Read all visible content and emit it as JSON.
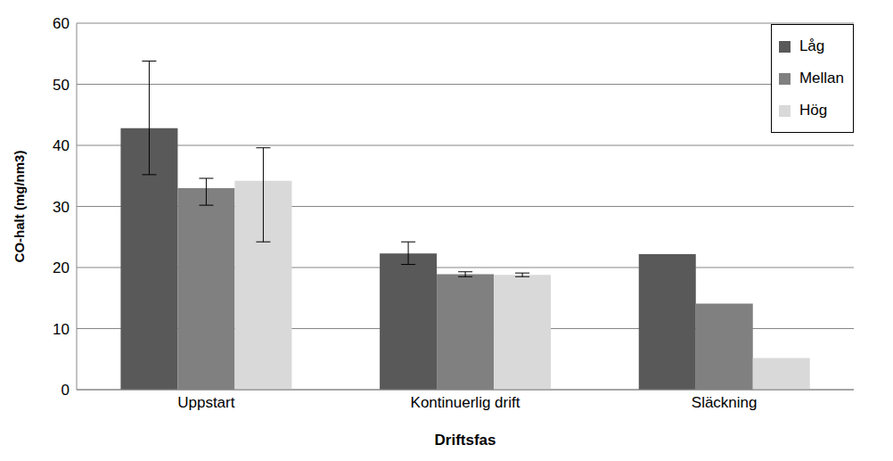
{
  "chart_data": {
    "type": "bar",
    "categories": [
      "Uppstart",
      "Kontinuerlig drift",
      "Släckning"
    ],
    "x_label": "Driftsfas",
    "y_label": "CO-halt (mg/nm3)",
    "ylim": [
      0,
      60
    ],
    "yticks": [
      0,
      10,
      20,
      30,
      40,
      50,
      60
    ],
    "grid": true,
    "legend": "upper right",
    "series": [
      {
        "name": "Låg",
        "color": "#595959",
        "values": [
          42.8,
          22.3,
          22.2
        ],
        "error": [
          [
            7.6,
            11.0
          ],
          [
            1.8,
            1.9
          ],
          null
        ]
      },
      {
        "name": "Mellan",
        "color": "#808080",
        "values": [
          33.0,
          18.9,
          14.1
        ],
        "error": [
          [
            2.8,
            1.6
          ],
          [
            0.4,
            0.4
          ],
          null
        ]
      },
      {
        "name": "Hög",
        "color": "#d9d9d9",
        "values": [
          34.2,
          18.8,
          5.2
        ],
        "error": [
          [
            10.0,
            5.4
          ],
          [
            0.3,
            0.3
          ],
          null
        ]
      }
    ]
  }
}
